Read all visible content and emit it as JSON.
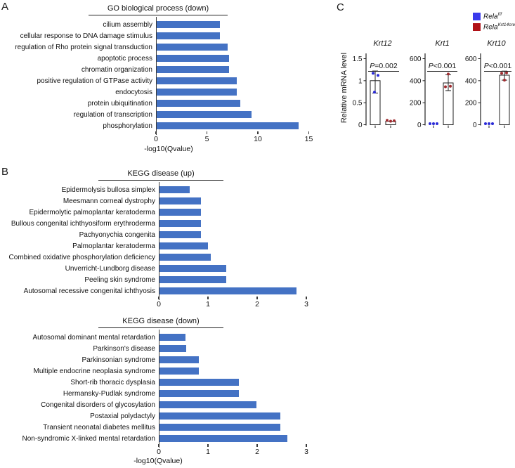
{
  "figure": {
    "panel_labels": {
      "a": "A",
      "b": "B",
      "c": "C"
    }
  },
  "chart_data": [
    {
      "id": "go-biological-process-down",
      "type": "bar",
      "orientation": "horizontal",
      "title": "GO biological process (down)",
      "xlabel": "-log10(Qvalue)",
      "xlim": [
        0,
        15
      ],
      "xticks": [
        "0",
        "5",
        "10",
        "15"
      ],
      "grid": false,
      "bar_color": "#4472C4",
      "categories": [
        "cilium assembly",
        "cellular response to DNA damage stimulus",
        "regulation of Rho protein signal transduction",
        "apoptotic process",
        "chromatin organization",
        "positive regulation of GTPase activity",
        "endocytosis",
        "protein ubiquitination",
        "regulation of transcription",
        "phosphorylation"
      ],
      "values": [
        6.3,
        6.3,
        7.0,
        7.2,
        7.2,
        7.9,
        7.9,
        8.3,
        9.4,
        14.0
      ]
    },
    {
      "id": "kegg-disease-up",
      "type": "bar",
      "orientation": "horizontal",
      "title": "KEGG disease (up)",
      "xlabel": "",
      "xlim": [
        0,
        3
      ],
      "xticks": [
        "0",
        "1",
        "2",
        "3"
      ],
      "grid": false,
      "bar_color": "#4472C4",
      "categories": [
        "Epidermolysis bullosa simplex",
        "Meesmann corneal dystrophy",
        "Epidermolytic palmoplantar keratoderma",
        "Bullous congenital ichthyosiform erythroderma",
        "Pachyonychia congenita",
        "Palmoplantar keratoderma",
        "Combined oxidative phosphorylation deficiency",
        "Unverricht-Lundborg disease",
        "Peeling skin syndrome",
        "Autosomal recessive congenital ichthyosis"
      ],
      "values": [
        0.63,
        0.86,
        0.86,
        0.86,
        0.86,
        1.0,
        1.06,
        1.37,
        1.37,
        2.8
      ]
    },
    {
      "id": "kegg-disease-down",
      "type": "bar",
      "orientation": "horizontal",
      "title": "KEGG disease (down)",
      "xlabel": "-log10(Qvalue)",
      "xlim": [
        0,
        3
      ],
      "xticks": [
        "0",
        "1",
        "2",
        "3"
      ],
      "grid": false,
      "bar_color": "#4472C4",
      "categories": [
        "Autosomal dominant mental retardation",
        "Parkinson's disease",
        "Parkinsonian syndrome",
        "Multiple endocrine neoplasia syndrome",
        "Short-rib thoracic dysplasia",
        "Hermansky-Pudlak syndrome",
        "Congenital disorders of glycosylation",
        "Postaxial polydactyly",
        "Transient neonatal diabetes mellitus",
        "Non-syndromic X-linked mental retardation"
      ],
      "values": [
        0.54,
        0.55,
        0.81,
        0.82,
        1.63,
        1.63,
        1.98,
        2.47,
        2.47,
        2.62
      ]
    },
    {
      "id": "qpcr-relative-mrna",
      "type": "bar",
      "ylabel": "Relative mRNA level",
      "legend_position": "top-right",
      "legend": [
        {
          "base": "Rela",
          "sup": "f/f",
          "color": "#3A3AEC"
        },
        {
          "base": "Rela",
          "sup": "Krt14cre",
          "color": "#B01117"
        }
      ],
      "subplots": [
        {
          "title": "Krt12",
          "p_label": "P=0.002",
          "ylim": [
            0,
            1.5
          ],
          "yticks": [
            "0",
            "0.5",
            "1",
            "1.5"
          ],
          "groups": [
            {
              "group": "Rela f/f",
              "mean": 1.0,
              "err": [
                0.72,
                1.22
              ],
              "points": [
                1.17,
                1.12,
                0.74
              ],
              "points_dx": [
                -3,
                4,
                -1
              ],
              "point_color": "#2B2BD6"
            },
            {
              "group": "Rela Krt14cre",
              "mean": 0.08,
              "err": null,
              "points": [
                0.1,
                0.08,
                0.09
              ],
              "points_dx": [
                -5,
                0,
                5
              ],
              "point_color": "#A02C30"
            }
          ]
        },
        {
          "title": "Krt1",
          "p_label": "P<0.001",
          "ylim": [
            0,
            600
          ],
          "yticks": [
            "0",
            "200",
            "400",
            "600"
          ],
          "groups": [
            {
              "group": "Rela f/f",
              "mean": 0,
              "err": null,
              "points": [
                0,
                0,
                0
              ],
              "points_dx": [
                -5,
                0,
                5
              ],
              "point_color": "#2B2BD6"
            },
            {
              "group": "Rela Krt14cre",
              "mean": 380,
              "err": [
                310,
                455
              ],
              "points": [
                345,
                350,
                460
              ],
              "points_dx": [
                -4,
                3,
                0
              ],
              "point_color": "#A02C30"
            }
          ]
        },
        {
          "title": "Krt10",
          "p_label": "P<0.001",
          "ylim": [
            0,
            600
          ],
          "yticks": [
            "0",
            "200",
            "400",
            "600"
          ],
          "groups": [
            {
              "group": "Rela f/f",
              "mean": 0,
              "err": null,
              "points": [
                0,
                0,
                0
              ],
              "points_dx": [
                -5,
                0,
                5
              ],
              "point_color": "#2B2BD6"
            },
            {
              "group": "Rela Krt14cre",
              "mean": 450,
              "err": [
                405,
                487
              ],
              "points": [
                467,
                472,
                405
              ],
              "points_dx": [
                -4,
                3,
                0
              ],
              "point_color": "#A02C30"
            }
          ]
        }
      ]
    }
  ]
}
